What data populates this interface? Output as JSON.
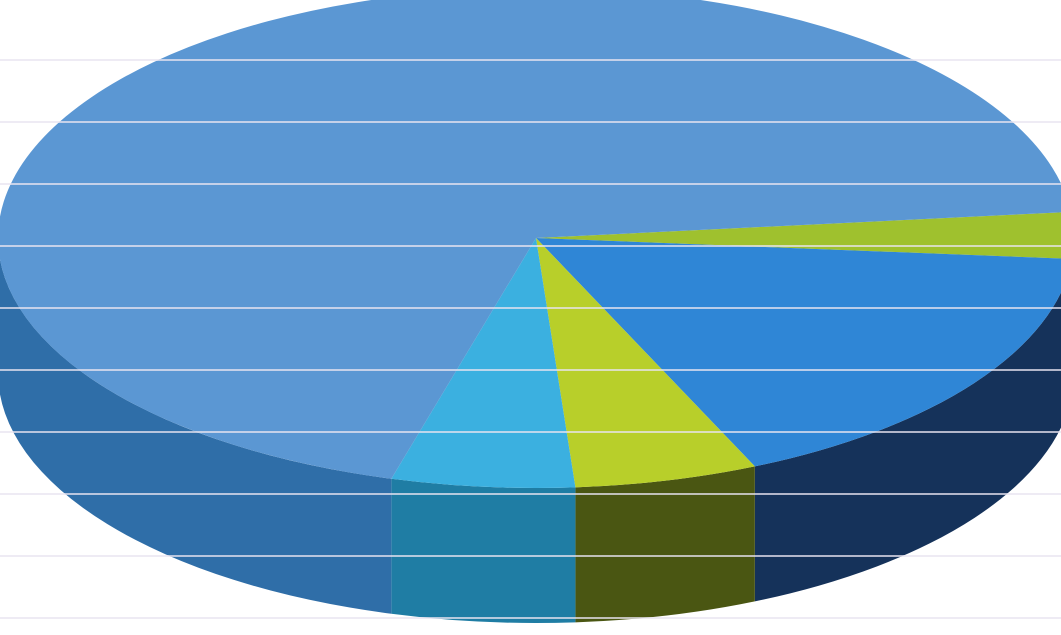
{
  "chart_data": {
    "type": "pie",
    "style": "3d",
    "title": "",
    "legend": "none",
    "grid": true,
    "slices": [
      {
        "label": "",
        "value": 69.0,
        "color": "#5b97d3",
        "side_color": "#2f6ea8"
      },
      {
        "label": "",
        "value": 3.0,
        "color": "#9fc12e",
        "side_color": "#5f7a12"
      },
      {
        "label": "",
        "value": 17.0,
        "color": "#2f86d6",
        "side_color": "#15325a"
      },
      {
        "label": "",
        "value": 5.5,
        "color": "#b8cf2a",
        "side_color": "#4a5612"
      },
      {
        "label": "",
        "value": 5.5,
        "color": "#3bb0e0",
        "side_color": "#1f7da4"
      }
    ]
  }
}
